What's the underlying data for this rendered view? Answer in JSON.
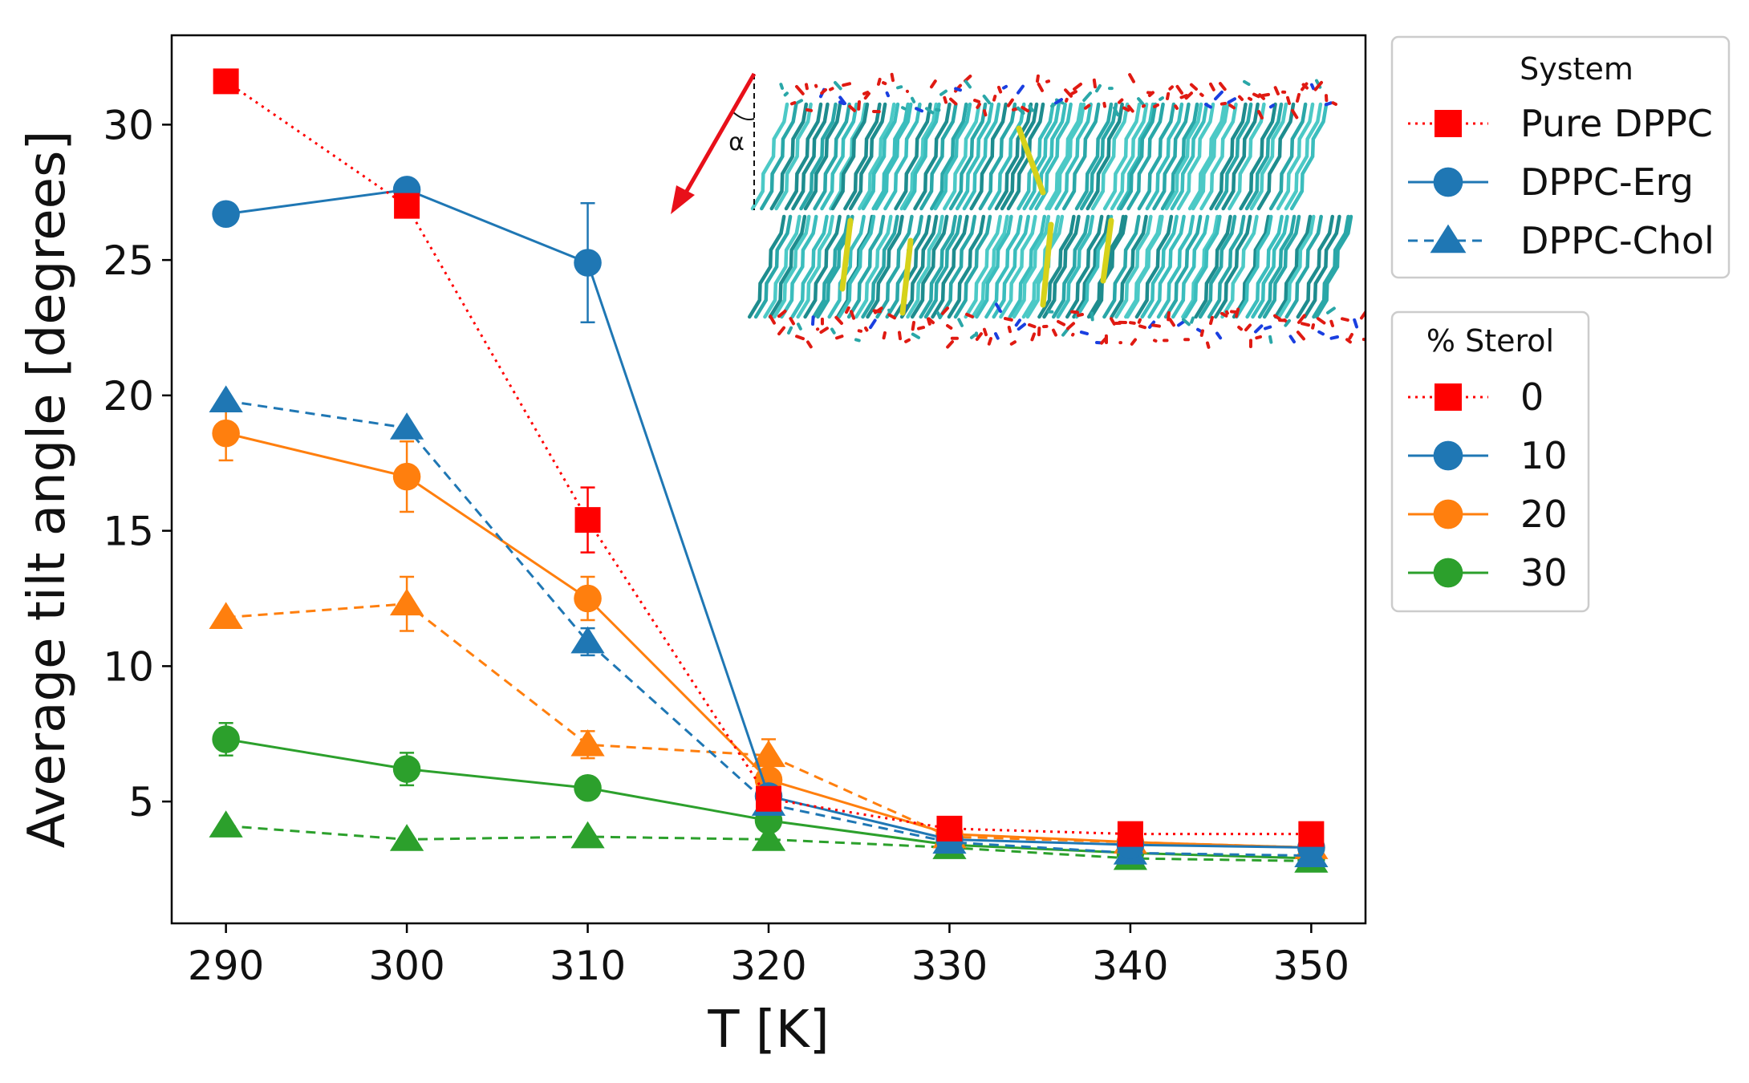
{
  "chart_data": {
    "type": "line",
    "xlabel": "T [K]",
    "ylabel": "Average tilt angle [degrees]",
    "xlim": [
      287,
      353
    ],
    "ylim": [
      0.5,
      33.3
    ],
    "xticks": [
      290,
      300,
      310,
      320,
      330,
      340,
      350
    ],
    "yticks": [
      5,
      10,
      15,
      20,
      25,
      30
    ],
    "grid": false,
    "x": [
      290,
      300,
      310,
      320,
      330,
      340,
      350
    ],
    "series": [
      {
        "system": "Pure DPPC",
        "sterol": "0",
        "color": "#ff0000",
        "marker": "square",
        "linestyle": "dotted",
        "values": [
          31.6,
          27.0,
          15.4,
          5.1,
          4.0,
          3.8,
          3.8
        ],
        "errors": [
          0,
          0,
          1.2,
          0,
          0,
          0,
          0
        ]
      },
      {
        "system": "DPPC-Erg",
        "sterol": "10",
        "color": "#1f77b4",
        "marker": "circle",
        "linestyle": "solid",
        "values": [
          26.7,
          27.6,
          24.9,
          5.2,
          3.6,
          3.4,
          3.3
        ],
        "errors": [
          0,
          0,
          2.2,
          0,
          0,
          0,
          0
        ]
      },
      {
        "system": "DPPC-Chol",
        "sterol": "10",
        "color": "#1f77b4",
        "marker": "triangle",
        "linestyle": "dashed",
        "values": [
          19.8,
          18.8,
          10.9,
          4.9,
          3.5,
          3.1,
          3.0
        ],
        "errors": [
          0,
          0,
          0.5,
          0,
          0,
          0,
          0
        ]
      },
      {
        "system": "DPPC-Erg",
        "sterol": "20",
        "color": "#ff7f0e",
        "marker": "circle",
        "linestyle": "solid",
        "values": [
          18.6,
          17.0,
          12.5,
          5.8,
          3.8,
          3.5,
          3.3
        ],
        "errors": [
          1.0,
          1.3,
          0.8,
          0,
          0,
          0,
          0
        ]
      },
      {
        "system": "DPPC-Chol",
        "sterol": "20",
        "color": "#ff7f0e",
        "marker": "triangle",
        "linestyle": "dashed",
        "values": [
          11.8,
          12.3,
          7.1,
          6.7,
          3.7,
          3.5,
          3.3
        ],
        "errors": [
          0,
          1.0,
          0.5,
          0.6,
          0,
          0,
          0
        ]
      },
      {
        "system": "DPPC-Erg",
        "sterol": "30",
        "color": "#2ca02c",
        "marker": "circle",
        "linestyle": "solid",
        "values": [
          7.3,
          6.2,
          5.5,
          4.3,
          3.4,
          3.1,
          2.9
        ],
        "errors": [
          0.6,
          0.6,
          0,
          0,
          0,
          0,
          0
        ]
      },
      {
        "system": "DPPC-Chol",
        "sterol": "30",
        "color": "#2ca02c",
        "marker": "triangle",
        "linestyle": "dashed",
        "values": [
          4.1,
          3.6,
          3.7,
          3.6,
          3.3,
          2.9,
          2.8
        ],
        "errors": [
          0,
          0,
          0,
          0,
          0,
          0,
          0
        ]
      }
    ],
    "legends": [
      {
        "title": "System",
        "placement": "top-right outside",
        "entries": [
          {
            "label": "Pure DPPC",
            "color": "#ff0000",
            "marker": "square",
            "linestyle": "dotted"
          },
          {
            "label": "DPPC-Erg",
            "color": "#1f77b4",
            "marker": "circle",
            "linestyle": "solid"
          },
          {
            "label": "DPPC-Chol",
            "color": "#1f77b4",
            "marker": "triangle",
            "linestyle": "dashed"
          }
        ]
      },
      {
        "title": "% Sterol",
        "placement": "right outside",
        "entries": [
          {
            "label": "0",
            "color": "#ff0000",
            "marker": "square",
            "linestyle": "dotted"
          },
          {
            "label": "10",
            "color": "#1f77b4",
            "marker": "circle",
            "linestyle": "solid"
          },
          {
            "label": "20",
            "color": "#ff7f0e",
            "marker": "circle",
            "linestyle": "solid"
          },
          {
            "label": "30",
            "color": "#2ca02c",
            "marker": "circle",
            "linestyle": "solid"
          }
        ]
      }
    ],
    "inset": {
      "description_icon": "lipid-bilayer-image",
      "annotation": "α",
      "arrow_color": "#e8101a"
    }
  }
}
